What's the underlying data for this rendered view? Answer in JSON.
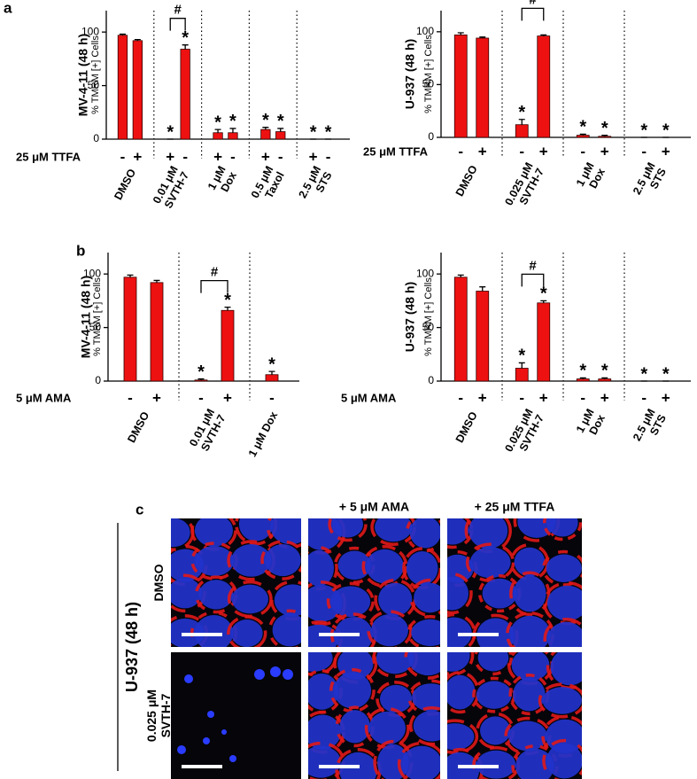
{
  "panel_labels": [
    "a",
    "b",
    "c"
  ],
  "chart_data": [
    {
      "type": "bar",
      "title": "MV-4-11 (48 h)",
      "ylabel": "% TMRM [+] Cells",
      "treatment_label": "25 μM TTFA",
      "categories": [
        "-",
        "+",
        "+",
        "-",
        "+",
        "-",
        "+",
        "-",
        "+",
        "-"
      ],
      "group_labels": [
        [
          "DMSO"
        ],
        null,
        [
          "0.01 μM",
          "SVTH-7"
        ],
        null,
        [
          "1 μM",
          "Dox"
        ],
        null,
        [
          "0.5 μM",
          "Taxol"
        ],
        null,
        [
          "2.5 μM",
          "STS"
        ],
        null
      ],
      "values": [
        97,
        92,
        0,
        84,
        6,
        6,
        9,
        7,
        0,
        0
      ],
      "errors": [
        1,
        1,
        0,
        4,
        3,
        4,
        2,
        3,
        0,
        0
      ],
      "significance": [
        null,
        null,
        "*",
        "*",
        "*",
        "*",
        "*",
        "*",
        "*",
        "*"
      ],
      "bracket": {
        "label": "#",
        "bars": [
          2,
          3
        ]
      },
      "color": "#ee1111",
      "ylim": [
        0,
        120
      ],
      "yticks": [
        0,
        50,
        100
      ]
    },
    {
      "type": "bar",
      "title": "U-937 (48 h)",
      "ylabel": "% TMRM [+] Cells",
      "treatment_label": "25 μM TTFA",
      "categories": [
        "-",
        "+",
        "-",
        "+",
        "-",
        "+",
        "-",
        "+"
      ],
      "group_labels": [
        [
          "DMSO"
        ],
        null,
        [
          "0.025 μM",
          "SVTH-7"
        ],
        null,
        [
          "1 μM",
          "Dox"
        ],
        null,
        [
          "2.5 μM",
          "STS"
        ],
        null
      ],
      "values": [
        97,
        94,
        12,
        96,
        2,
        1,
        0,
        0
      ],
      "errors": [
        2,
        1,
        5,
        1,
        1,
        1,
        0,
        0
      ],
      "significance": [
        null,
        null,
        "*",
        null,
        "*",
        "*",
        "*",
        "*"
      ],
      "bracket": {
        "label": "#",
        "bars": [
          2,
          3
        ]
      },
      "color": "#ee1111",
      "ylim": [
        0,
        120
      ],
      "yticks": [
        0,
        50,
        100
      ]
    },
    {
      "type": "bar",
      "title": "MV-4-11 (48 h)",
      "ylabel": "% TMRM [+] Cells",
      "treatment_label": "5 μM AMA",
      "categories": [
        "-",
        "+",
        "-",
        "+",
        "-"
      ],
      "group_labels": [
        [
          "DMSO"
        ],
        null,
        [
          "0.01 μM",
          "SVTH-7"
        ],
        null,
        [
          "1 μM Dox"
        ]
      ],
      "values": [
        97,
        92,
        1,
        66,
        6
      ],
      "errors": [
        2,
        2,
        1,
        3,
        3
      ],
      "significance": [
        null,
        null,
        "*",
        "*",
        "*"
      ],
      "bracket": {
        "label": "#",
        "bars": [
          2,
          3
        ]
      },
      "color": "#ee1111",
      "ylim": [
        0,
        120
      ],
      "yticks": [
        0,
        50,
        100
      ]
    },
    {
      "type": "bar",
      "title": "U-937 (48 h)",
      "ylabel": "% TMRM [+] Cells",
      "treatment_label": "5 μM AMA",
      "categories": [
        "-",
        "+",
        "-",
        "+",
        "-",
        "+",
        "-",
        "+"
      ],
      "group_labels": [
        [
          "DMSO"
        ],
        null,
        [
          "0.025 μM",
          "SVTH-7"
        ],
        null,
        [
          "1 μM",
          "Dox"
        ],
        null,
        [
          "2.5 μM",
          "STS"
        ],
        null
      ],
      "values": [
        97,
        84,
        12,
        73,
        2,
        2,
        0,
        0
      ],
      "errors": [
        2,
        4,
        5,
        2,
        1,
        1,
        0,
        0
      ],
      "significance": [
        null,
        null,
        "*",
        "*",
        "*",
        "*",
        "*",
        "*"
      ],
      "bracket": {
        "label": "#",
        "bars": [
          2,
          3
        ]
      },
      "color": "#ee1111",
      "ylim": [
        0,
        120
      ],
      "yticks": [
        0,
        50,
        100
      ]
    }
  ],
  "panel_c": {
    "column_headers": [
      "+ 5 μM AMA",
      "+ 25 μM TTFA"
    ],
    "row_labels": [
      [
        "DMSO"
      ],
      [
        "0.025 μM",
        "SVTH-7"
      ]
    ],
    "side_label": "U-937 (48 h)"
  }
}
